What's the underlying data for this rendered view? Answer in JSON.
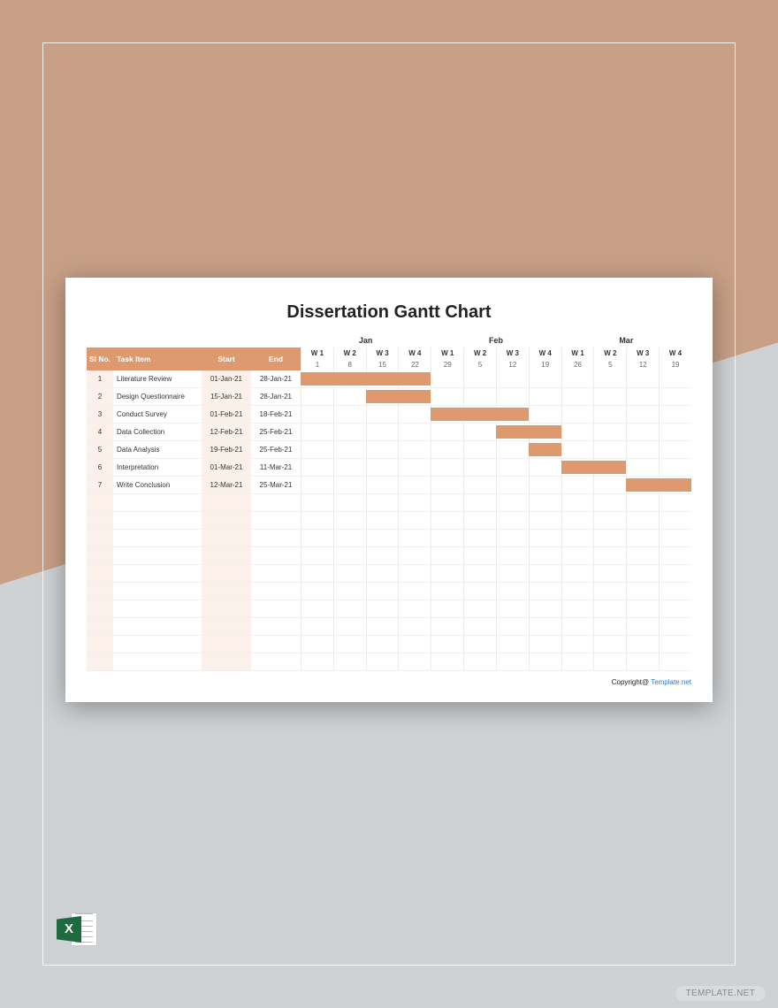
{
  "background": {
    "top_color": "#c8a086",
    "bottom_color": "#cfd2d4",
    "frame_border_color": "rgba(255,255,255,0.85)"
  },
  "sheet": {
    "title": "Dissertation Gantt Chart",
    "title_fontsize": 20,
    "title_color": "#222222",
    "background_color": "#ffffff",
    "shadow": "0 6px 28px rgba(0,0,0,0.35)"
  },
  "columns": {
    "sl": "Sl No.",
    "task": "Task Item",
    "start": "Start",
    "end": "End",
    "header_bg": "#de9a6e",
    "header_text_color": "#ffffff",
    "stripe_light": "#fbf1ea",
    "stripe_white": "#ffffff",
    "grid_color": "#f0ece8"
  },
  "timeline": {
    "months": [
      {
        "label": "Jan",
        "span": 4
      },
      {
        "label": "Feb",
        "span": 4
      },
      {
        "label": "Mar",
        "span": 4
      }
    ],
    "weeks": [
      "W 1",
      "W 2",
      "W 3",
      "W 4",
      "W 1",
      "W 2",
      "W 3",
      "W 4",
      "W 1",
      "W 2",
      "W 3",
      "W 4"
    ],
    "days": [
      "1",
      "8",
      "15",
      "22",
      "29",
      "5",
      "12",
      "19",
      "26",
      "5",
      "12",
      "19"
    ],
    "total_weeks": 12
  },
  "tasks": [
    {
      "sl": "1",
      "name": "Literature Review",
      "start": "01-Jan-21",
      "end": "28-Jan-21",
      "bar_start": 0,
      "bar_span": 4
    },
    {
      "sl": "2",
      "name": "Design Questionnaire",
      "start": "15-Jan-21",
      "end": "28-Jan-21",
      "bar_start": 2,
      "bar_span": 2
    },
    {
      "sl": "3",
      "name": "Conduct Survey",
      "start": "01-Feb-21",
      "end": "18-Feb-21",
      "bar_start": 4,
      "bar_span": 3
    },
    {
      "sl": "4",
      "name": "Data Collection",
      "start": "12-Feb-21",
      "end": "25-Feb-21",
      "bar_start": 6,
      "bar_span": 2
    },
    {
      "sl": "5",
      "name": "Data Analysis",
      "start": "19-Feb-21",
      "end": "25-Feb-21",
      "bar_start": 7,
      "bar_span": 1
    },
    {
      "sl": "6",
      "name": "Interpretation",
      "start": "01-Mar-21",
      "end": "11-Mar-21",
      "bar_start": 8,
      "bar_span": 2
    },
    {
      "sl": "7",
      "name": "Write Conclusion",
      "start": "12-Mar-21",
      "end": "25-Mar-21",
      "bar_start": 10,
      "bar_span": 2
    }
  ],
  "bar_color": "#de9a6e",
  "empty_row_count": 10,
  "footer": {
    "prefix": "Copyright@ ",
    "link_text": "Template.net",
    "link_color": "#2b7bbf"
  },
  "excel_icon": {
    "letter": "X",
    "badge_color": "#1e6b40"
  },
  "watermark": "TEMPLATE.NET"
}
